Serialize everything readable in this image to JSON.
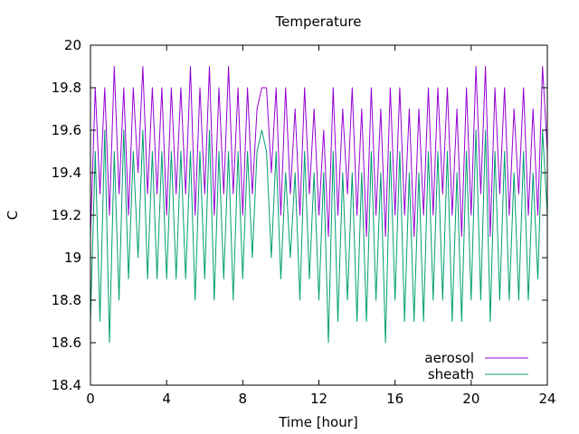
{
  "chart_data": {
    "type": "line",
    "title": "Temperature",
    "xlabel": "Time [hour]",
    "ylabel": "C",
    "xlim": [
      0,
      24
    ],
    "ylim": [
      18.4,
      20
    ],
    "xticks": [
      0,
      4,
      8,
      12,
      16,
      20,
      24
    ],
    "yticks": [
      18.4,
      18.6,
      18.8,
      19,
      19.2,
      19.4,
      19.6,
      19.8,
      20
    ],
    "ytick_labels": [
      "18.4",
      "18.6",
      "18.8",
      "19",
      "19.2",
      "19.4",
      "19.6",
      "19.8",
      "20"
    ],
    "grid": false,
    "legend_position": "bottom-right",
    "x": [
      0,
      0.25,
      0.5,
      0.75,
      1,
      1.25,
      1.5,
      1.75,
      2,
      2.25,
      2.5,
      2.75,
      3,
      3.25,
      3.5,
      3.75,
      4,
      4.25,
      4.5,
      4.75,
      5,
      5.25,
      5.5,
      5.75,
      6,
      6.25,
      6.5,
      6.75,
      7,
      7.25,
      7.5,
      7.75,
      8,
      8.25,
      8.5,
      8.75,
      9,
      9.25,
      9.5,
      9.75,
      10,
      10.25,
      10.5,
      10.75,
      11,
      11.25,
      11.5,
      11.75,
      12,
      12.25,
      12.5,
      12.75,
      13,
      13.25,
      13.5,
      13.75,
      14,
      14.25,
      14.5,
      14.75,
      15,
      15.25,
      15.5,
      15.75,
      16,
      16.25,
      16.5,
      16.75,
      17,
      17.25,
      17.5,
      17.75,
      18,
      18.25,
      18.5,
      18.75,
      19,
      19.25,
      19.5,
      19.75,
      20,
      20.25,
      20.5,
      20.75,
      21,
      21.25,
      21.5,
      21.75,
      22,
      22.25,
      22.5,
      22.75,
      23,
      23.25,
      23.5,
      23.75,
      24
    ],
    "series": [
      {
        "name": "aerosol",
        "color": "#9400d3",
        "values": [
          19.1,
          19.8,
          19.3,
          19.8,
          19.2,
          19.9,
          19.3,
          19.8,
          19.2,
          19.8,
          19.4,
          19.9,
          19.3,
          19.8,
          19.3,
          19.8,
          19.2,
          19.8,
          19.3,
          19.8,
          19.3,
          19.9,
          19.2,
          19.8,
          19.3,
          19.9,
          19.2,
          19.8,
          19.3,
          19.9,
          19.3,
          19.8,
          19.2,
          19.8,
          19.3,
          19.7,
          19.8,
          19.8,
          19.4,
          19.8,
          19.2,
          19.8,
          19.3,
          19.7,
          19.2,
          19.8,
          19.3,
          19.7,
          19.2,
          19.6,
          19.1,
          19.8,
          19.2,
          19.7,
          19.3,
          19.8,
          19.2,
          19.7,
          19.1,
          19.8,
          19.2,
          19.7,
          19.1,
          19.8,
          19.2,
          19.8,
          19.2,
          19.7,
          19.1,
          19.7,
          19.2,
          19.8,
          19.2,
          19.8,
          19.3,
          19.8,
          19.2,
          19.7,
          19.1,
          19.8,
          19.2,
          19.9,
          19.3,
          19.9,
          19.1,
          19.8,
          19.3,
          19.8,
          19.2,
          19.7,
          19.3,
          19.8,
          19.2,
          19.7,
          19.2,
          19.9,
          19.5
        ]
      },
      {
        "name": "sheath",
        "color": "#009e73",
        "values": [
          18.7,
          19.5,
          18.7,
          19.6,
          18.6,
          19.5,
          18.8,
          19.6,
          18.9,
          19.5,
          19.0,
          19.6,
          18.9,
          19.5,
          18.9,
          19.5,
          18.9,
          19.5,
          18.9,
          19.5,
          18.9,
          19.5,
          18.8,
          19.5,
          18.9,
          19.6,
          18.8,
          19.5,
          18.9,
          19.5,
          18.8,
          19.5,
          18.9,
          19.5,
          19.0,
          19.5,
          19.6,
          19.5,
          19.0,
          19.5,
          18.9,
          19.4,
          19.0,
          19.4,
          18.8,
          19.5,
          18.9,
          19.4,
          18.8,
          19.4,
          18.6,
          19.5,
          18.7,
          19.4,
          18.8,
          19.4,
          18.7,
          19.4,
          18.7,
          19.5,
          18.8,
          19.4,
          18.6,
          19.5,
          18.8,
          19.5,
          18.7,
          19.4,
          18.7,
          19.4,
          18.7,
          19.5,
          18.8,
          19.5,
          18.8,
          19.5,
          18.7,
          19.4,
          18.7,
          19.5,
          18.8,
          19.6,
          18.8,
          19.6,
          18.7,
          19.5,
          18.8,
          19.5,
          18.8,
          19.4,
          18.8,
          19.5,
          18.8,
          19.4,
          18.9,
          19.6,
          19.2
        ]
      }
    ]
  }
}
